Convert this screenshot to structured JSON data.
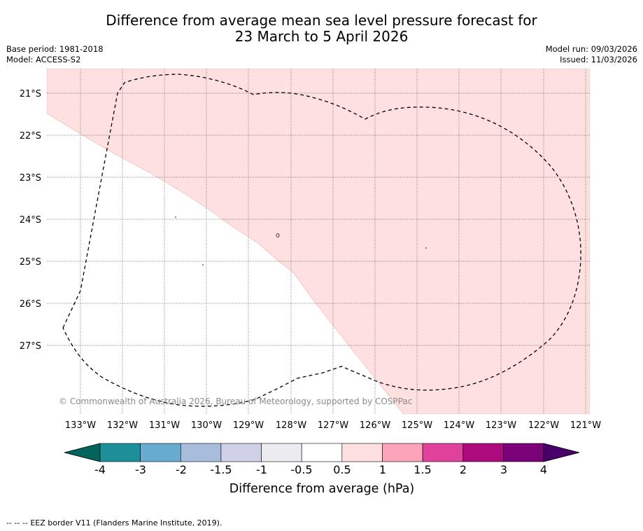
{
  "title": {
    "line1": "Difference from average mean sea level pressure forecast for",
    "line2": "23 March to 5 April 2026"
  },
  "meta": {
    "base_period": "Base period: 1981-2018",
    "model": "Model: ACCESS-S2",
    "model_run": "Model run: 09/03/2026",
    "issued": "Issued: 11/03/2026"
  },
  "map": {
    "lon_labels": [
      "133°W",
      "132°W",
      "131°W",
      "130°W",
      "129°W",
      "128°W",
      "127°W",
      "126°W",
      "125°W",
      "124°W",
      "123°W",
      "122°W",
      "121°W"
    ],
    "lat_labels": [
      "21°S",
      "22°S",
      "23°S",
      "24°S",
      "25°S",
      "26°S",
      "27°S"
    ],
    "copyright": "© Commonwealth of Australia 2026, Bureau of Meteorology, supported by COSPPac",
    "anomaly_region_category": "0.5 to 1",
    "anomaly_fill": "#fde0df",
    "eez_line_color": "#000000"
  },
  "colorbar": {
    "ticks": [
      "-4",
      "-3",
      "-2",
      "-1.5",
      "-1",
      "-0.5",
      "0.5",
      "1",
      "1.5",
      "2",
      "3",
      "4"
    ],
    "label": "Difference from average (hPa)",
    "colors": {
      "below_min": "#00645a",
      "bins": [
        "#1b9099",
        "#67abd1",
        "#a8bcdc",
        "#d0d0e8",
        "#ececf0",
        "#ffffff",
        "#fde0df",
        "#fba3b9",
        "#e0419b",
        "#ad0a7e",
        "#7a0177"
      ],
      "above_max": "#4a006a"
    }
  },
  "footer": {
    "legend_marker": "-- -- --",
    "legend_text": "EEZ border V11 (Flanders Marine Institute, 2019)."
  }
}
